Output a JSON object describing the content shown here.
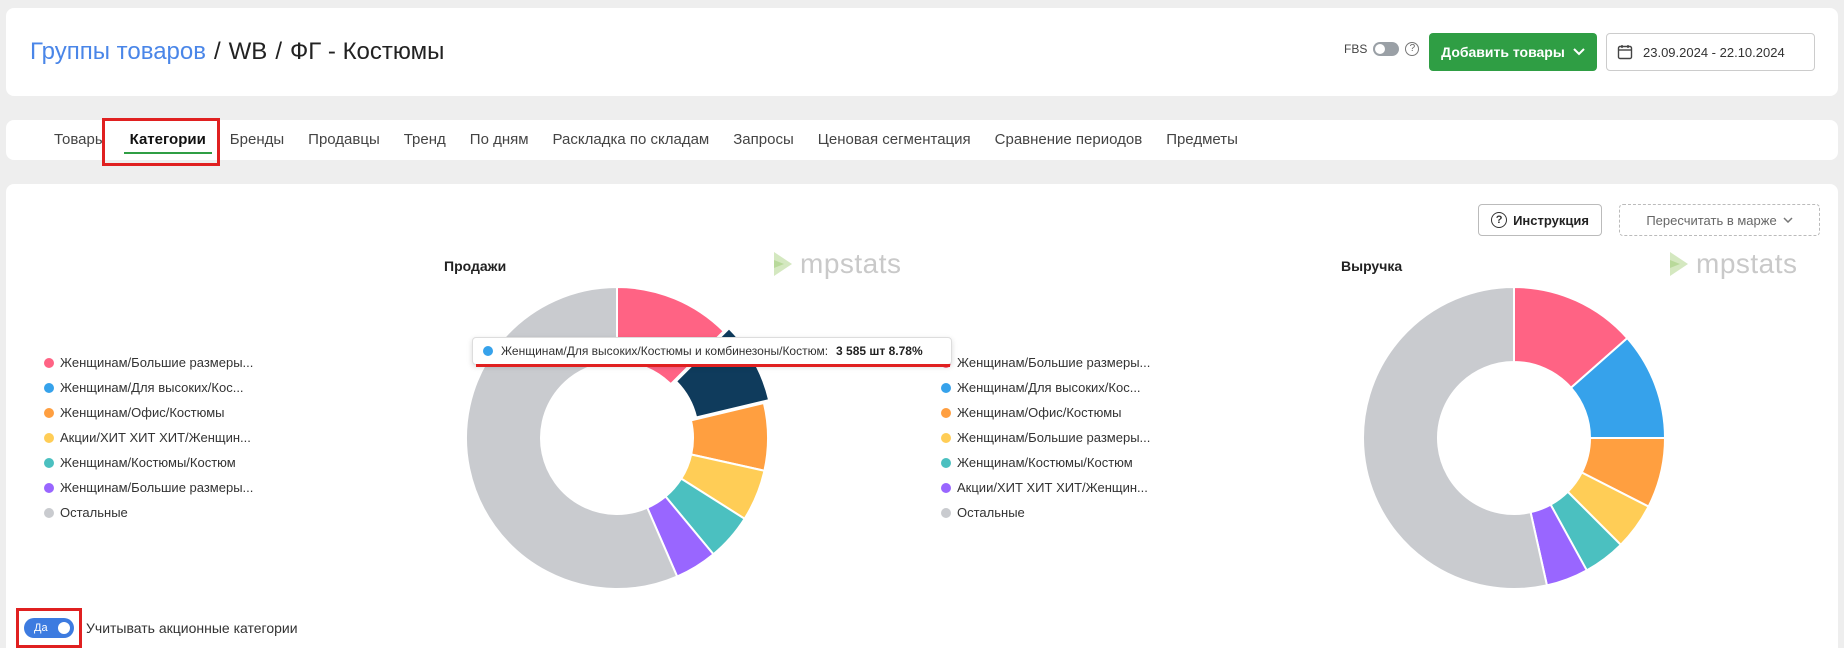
{
  "breadcrumb": {
    "link": "Группы товаров",
    "sep1": "/",
    "part2": "WB",
    "sep2": "/",
    "part3": "ФГ - Костюмы"
  },
  "fbs": {
    "label": "FBS",
    "help": "?"
  },
  "add_button": {
    "label": "Добавить товары"
  },
  "date_range": {
    "value": "23.09.2024 - 22.10.2024"
  },
  "tabs": [
    {
      "label": "Товары"
    },
    {
      "label": "Категории",
      "active": true
    },
    {
      "label": "Бренды"
    },
    {
      "label": "Продавцы"
    },
    {
      "label": "Тренд"
    },
    {
      "label": "По дням"
    },
    {
      "label": "Раскладка по складам"
    },
    {
      "label": "Запросы"
    },
    {
      "label": "Ценовая сегментация"
    },
    {
      "label": "Сравнение периодов"
    },
    {
      "label": "Предметы"
    }
  ],
  "instruction_button": {
    "label": "Инструкция"
  },
  "recalc_button": {
    "label": "Пересчитать в марже"
  },
  "logo_text": "mpstats",
  "colors": {
    "pink": "#ff6384",
    "blue": "#36a2eb",
    "orange": "#ff9f40",
    "yellow": "#ffcd56",
    "teal": "#4bc0c0",
    "purple": "#9966ff",
    "gray": "#c9cbcf",
    "highlight": "#0f3b5c",
    "accent_green": "#2f9e44",
    "annotation_red": "#e02020"
  },
  "sales_chart": {
    "title": "Продажи",
    "legend": [
      {
        "label": "Женщинам/Большие размеры...",
        "color": "#ff6384"
      },
      {
        "label": "Женщинам/Для высоких/Кос...",
        "color": "#36a2eb"
      },
      {
        "label": "Женщинам/Офис/Костюмы",
        "color": "#ff9f40"
      },
      {
        "label": "Акции/ХИТ ХИТ ХИТ/Женщин...",
        "color": "#ffcd56"
      },
      {
        "label": "Женщинам/Костюмы/Костюм",
        "color": "#4bc0c0"
      },
      {
        "label": "Женщинам/Большие размеры...",
        "color": "#9966ff"
      },
      {
        "label": "Остальные",
        "color": "#c9cbcf"
      }
    ]
  },
  "revenue_chart": {
    "title": "Выручка",
    "legend": [
      {
        "label": "Женщинам/Большие размеры...",
        "color": "#ff6384"
      },
      {
        "label": "Женщинам/Для высоких/Кос...",
        "color": "#36a2eb"
      },
      {
        "label": "Женщинам/Офис/Костюмы",
        "color": "#ff9f40"
      },
      {
        "label": "Женщинам/Большие размеры...",
        "color": "#ffcd56"
      },
      {
        "label": "Женщинам/Костюмы/Костюм",
        "color": "#4bc0c0"
      },
      {
        "label": "Акции/ХИТ ХИТ ХИТ/Женщин...",
        "color": "#9966ff"
      },
      {
        "label": "Остальные",
        "color": "#c9cbcf"
      }
    ]
  },
  "tooltip": {
    "category": "Женщинам/Для высоких/Костюмы и комбинезоны/Костюм:",
    "value": "3 585 шт 8.78%"
  },
  "promo_toggle": {
    "state_label": "Да",
    "label": "Учитывать акционные категории"
  },
  "chart_data": [
    {
      "type": "pie",
      "title": "Продажи",
      "labels": [
        "Женщинам/Большие размеры...",
        "Женщинам/Для высоких/Кос...",
        "Женщинам/Офис/Костюмы",
        "Акции/ХИТ ХИТ ХИТ/Женщин...",
        "Женщинам/Костюмы/Костюм",
        "Женщинам/Большие размеры...",
        "Остальные"
      ],
      "values": [
        12.5,
        8.78,
        7.2,
        5.5,
        5.0,
        4.5,
        56.52
      ],
      "highlighted_index": 1,
      "colors": [
        "#ff6384",
        "#0f3b5c",
        "#ff9f40",
        "#ffcd56",
        "#4bc0c0",
        "#9966ff",
        "#c9cbcf"
      ]
    },
    {
      "type": "pie",
      "title": "Выручка",
      "labels": [
        "Женщинам/Большие размеры...",
        "Женщинам/Для высоких/Кос...",
        "Женщинам/Офис/Костюмы",
        "Женщинам/Большие размеры...",
        "Женщинам/Костюмы/Костюм",
        "Акции/ХИТ ХИТ ХИТ/Женщин...",
        "Остальные"
      ],
      "values": [
        13.5,
        11.5,
        7.5,
        5.0,
        4.5,
        4.5,
        53.5
      ],
      "colors": [
        "#ff6384",
        "#36a2eb",
        "#ff9f40",
        "#ffcd56",
        "#4bc0c0",
        "#9966ff",
        "#c9cbcf"
      ]
    }
  ]
}
